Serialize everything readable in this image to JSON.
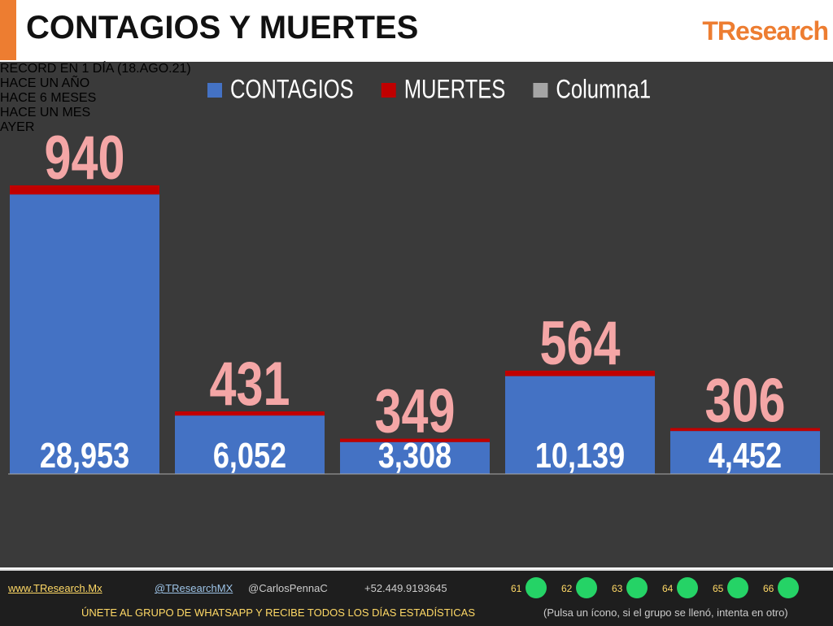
{
  "header": {
    "title": "CONTAGIOS Y MUERTES",
    "logo": "TResearch"
  },
  "chart_data": {
    "type": "stacked-bar",
    "categories": [
      "RECORD EN 1 DÍA\n(18.AGO.21)",
      "HACE UN AÑO",
      "HACE 6 MESES",
      "HACE UN MES",
      "AYER"
    ],
    "series": [
      {
        "name": "CONTAGIOS",
        "color": "#4472c4",
        "values": [
          28953,
          6052,
          3308,
          10139,
          4452
        ],
        "value_labels": [
          "28,953",
          "6,052",
          "3,308",
          "10,139",
          "4,452"
        ]
      },
      {
        "name": "MUERTES",
        "color": "#c00000",
        "values": [
          940,
          431,
          349,
          564,
          306
        ]
      },
      {
        "name": "Columna1",
        "color": "#a5a5a5",
        "values": [
          null,
          null,
          null,
          null,
          null
        ]
      }
    ],
    "legend": "top"
  },
  "footer": {
    "website": "www.TResearch.Mx",
    "twitter": "@TResearchMX",
    "personal": "@CarlosPennaC",
    "phone": "+52.449.9193645",
    "groups": [
      "61",
      "62",
      "63",
      "64",
      "65",
      "66"
    ],
    "cta": "ÚNETE AL GRUPO DE WHATSAPP Y RECIBE TODOS LOS DÍAS ESTADÍSTICAS",
    "note": "(Pulsa un ícono, si el grupo se llenó, intenta en otro)"
  }
}
